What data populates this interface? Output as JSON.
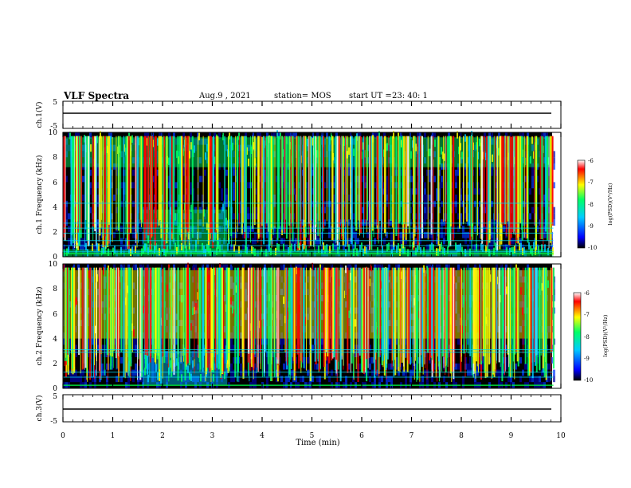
{
  "header": {
    "title": "VLF Spectra",
    "date": "Aug.9 , 2021",
    "station": "station= MOS",
    "start_label": "start UT = ",
    "start_time": "23: 40: 1"
  },
  "chart_data": [
    {
      "type": "line",
      "panel": "ch1-voltage",
      "ylabel": "ch.1(V)",
      "yticks": [
        "5",
        "-5"
      ],
      "ylim": [
        -5,
        5
      ],
      "x": [
        0,
        10
      ],
      "y": [
        0,
        0
      ]
    },
    {
      "type": "heatmap",
      "panel": "ch1-spectrogram",
      "ylabel": "ch.1 Frequency (kHz)",
      "yticks": [
        "0",
        "2",
        "4",
        "6",
        "8",
        "10"
      ],
      "ylim": [
        0,
        10
      ],
      "xlim": [
        0,
        9.85
      ],
      "colorbar": {
        "label": "log(PSD)(V²/Hz)",
        "ticks": [
          "-6",
          "-7",
          "-8",
          "-9",
          "-10"
        ],
        "range": [
          -10,
          -6
        ]
      },
      "bands": [
        {
          "x0": 0,
          "x1": 9.85,
          "f0": 7.2,
          "f1": 9.6,
          "level": -8.2
        },
        {
          "x0": 1.6,
          "x1": 3.3,
          "f0": 0.3,
          "f1": 3.8,
          "level": -8.6
        },
        {
          "x0": 0,
          "x1": 9.85,
          "f0": 0.0,
          "f1": 0.6,
          "level": -8.5
        }
      ],
      "spheric_rate_per_min": 45,
      "constant_lines_khz": [
        0.4,
        0.9,
        1.3,
        1.9,
        2.3,
        2.7,
        4.3
      ]
    },
    {
      "type": "heatmap",
      "panel": "ch2-spectrogram",
      "ylabel": "ch.2 Frequency (kHz)",
      "yticks": [
        "0",
        "2",
        "4",
        "6",
        "8",
        "10"
      ],
      "ylim": [
        0,
        10
      ],
      "xlim": [
        0,
        9.85
      ],
      "colorbar": {
        "label": "log(PSD)(V²/Hz)",
        "ticks": [
          "-6",
          "-7",
          "-8",
          "-9",
          "-10"
        ],
        "range": [
          -10,
          -6
        ]
      },
      "bands": [
        {
          "x0": 0,
          "x1": 9.85,
          "f0": 4.0,
          "f1": 9.5,
          "level": -7.3
        },
        {
          "x0": 1.6,
          "x1": 3.3,
          "f0": 0.3,
          "f1": 3.0,
          "level": -8.8
        }
      ],
      "spheric_rate_per_min": 55,
      "constant_lines_khz": [
        0.9,
        1.3,
        2.9,
        3.1
      ]
    },
    {
      "type": "line",
      "panel": "ch3-voltage",
      "ylabel": "ch.3(V)",
      "yticks": [
        "5",
        "-5"
      ],
      "ylim": [
        -5,
        5
      ],
      "x": [
        0,
        10
      ],
      "y": [
        0,
        0
      ]
    }
  ],
  "xaxis": {
    "label": "Time (min)",
    "ticks": [
      "0",
      "1",
      "2",
      "3",
      "4",
      "5",
      "6",
      "7",
      "8",
      "9",
      "10"
    ],
    "range": [
      0,
      10
    ]
  },
  "colors": {
    "scale": [
      "#000000",
      "#0000ff",
      "#00ccff",
      "#00ff66",
      "#ffff00",
      "#ff0000",
      "#ffffff"
    ]
  }
}
